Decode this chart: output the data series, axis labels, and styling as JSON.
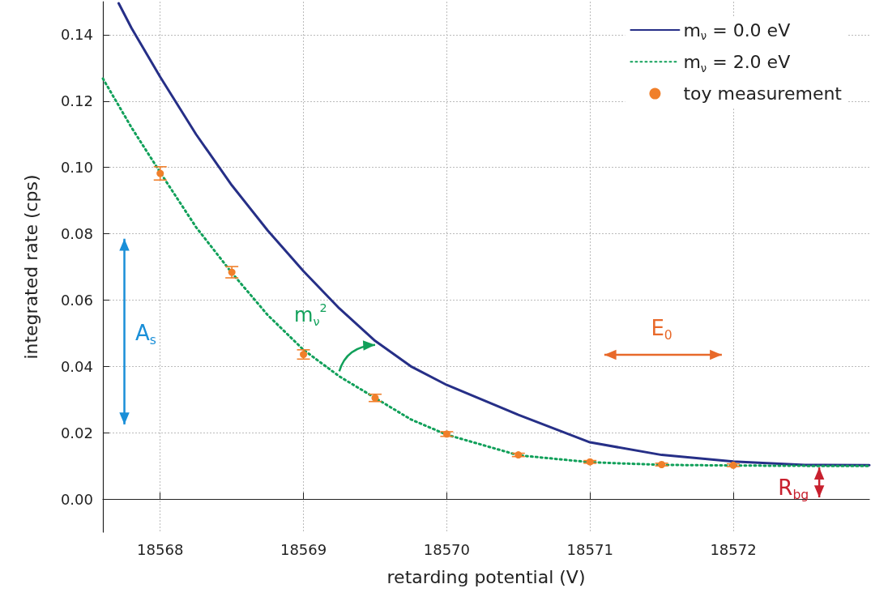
{
  "chart_data": {
    "type": "line",
    "xlabel": "retarding potential (V)",
    "ylabel": "integrated rate (cps)",
    "xlim": [
      18567.6,
      18572.95
    ],
    "xticks": [
      18568,
      18569,
      18570,
      18571,
      18572
    ],
    "ylim": [
      -0.01,
      0.15
    ],
    "yticks": [
      {
        "value": 0,
        "label": "0.00"
      },
      0.02,
      0.04,
      0.06,
      0.08,
      {
        "value": 0.1,
        "label": "0.10"
      },
      0.12,
      0.14
    ],
    "grid": true,
    "legend": "top right",
    "series": [
      {
        "name": "m$_{ν}$ = 0.0 eV",
        "color": "#262f87",
        "line_style": "solid",
        "marker": "none",
        "x": [
          18567.71,
          18567.8,
          18568,
          18568.25,
          18568.5,
          18568.75,
          18569,
          18569.25,
          18569.5,
          18569.75,
          18570,
          18570.5,
          18571,
          18571.5,
          18572,
          18572.5,
          18572.95
        ],
        "values": [
          0.1495,
          0.142,
          0.1273,
          0.11,
          0.0946,
          0.081,
          0.0687,
          0.0575,
          0.0477,
          0.04,
          0.0344,
          0.0254,
          0.0171,
          0.0133,
          0.0113,
          0.0103,
          0.0102
        ]
      },
      {
        "name": "m$_{ν}$ = 2.0 eV",
        "color": "#11a05a",
        "line_style": "dotted",
        "marker": "none",
        "x": [
          18567.6,
          18567.8,
          18568,
          18568.25,
          18568.5,
          18568.75,
          18569,
          18569.25,
          18569.5,
          18569.75,
          18570,
          18570.5,
          18571,
          18571.5,
          18572,
          18572.5,
          18572.95
        ],
        "values": [
          0.1268,
          0.112,
          0.0985,
          0.082,
          0.0682,
          0.0555,
          0.045,
          0.037,
          0.0305,
          0.024,
          0.0194,
          0.0132,
          0.0111,
          0.0103,
          0.0101,
          0.01,
          0.01
        ]
      },
      {
        "name": "toy measurement",
        "type": "scatter",
        "color": "#f07f2a",
        "marker": "circle",
        "x": [
          18568,
          18568.5,
          18569,
          18569.5,
          18570,
          18570.5,
          18571,
          18571.5,
          18572
        ],
        "values": [
          0.0982,
          0.0684,
          0.0436,
          0.0305,
          0.0196,
          0.0133,
          0.0112,
          0.0104,
          0.0102
        ],
        "errors": [
          0.002,
          0.0017,
          0.0014,
          0.0011,
          0.0007,
          0.0005,
          0.0004,
          0.0004,
          0.0004
        ]
      }
    ],
    "annotations": [
      "A$_{s}$",
      "m$_{ν}$$^{2}$",
      "E$_{0}$",
      "R$_{bg}$"
    ]
  }
}
